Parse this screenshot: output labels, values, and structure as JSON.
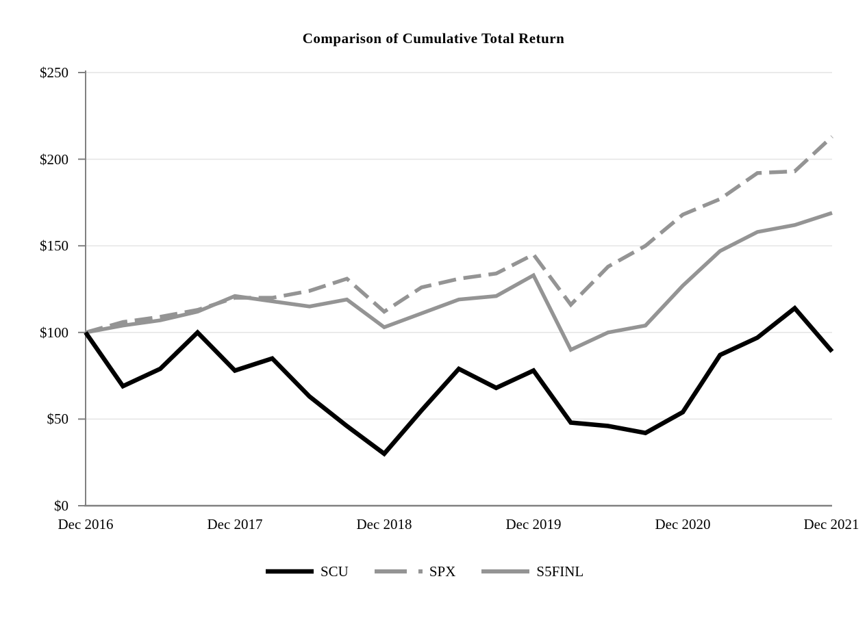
{
  "chart_data": {
    "type": "line",
    "title": "Comparison of Cumulative Total Return",
    "x_tick_labels": [
      "Dec 2016",
      "Dec 2017",
      "Dec 2018",
      "Dec 2019",
      "Dec 2020",
      "Dec 2021"
    ],
    "y_tick_labels": [
      "$250",
      "$200",
      "$150",
      "$100",
      "$50",
      "$0"
    ],
    "ylim": [
      0,
      250
    ],
    "y_tick_step": 50,
    "grid": true,
    "legend_position": "bottom",
    "x": [
      "Dec 2016",
      "Mar 2017",
      "Jun 2017",
      "Sep 2017",
      "Dec 2017",
      "Mar 2018",
      "Jun 2018",
      "Sep 2018",
      "Dec 2018",
      "Mar 2019",
      "Jun 2019",
      "Sep 2019",
      "Dec 2019",
      "Mar 2020",
      "Jun 2020",
      "Sep 2020",
      "Dec 2020",
      "Mar 2021",
      "Jun 2021",
      "Sep 2021",
      "Dec 2021"
    ],
    "series": [
      {
        "name": "SCU",
        "style": "solid",
        "color": "#000000",
        "values": [
          100,
          69,
          79,
          100,
          78,
          85,
          63,
          46,
          30,
          55,
          79,
          68,
          78,
          48,
          46,
          42,
          54,
          87,
          97,
          114,
          89
        ]
      },
      {
        "name": "SPX",
        "style": "dashed",
        "color": "#949494",
        "values": [
          100,
          106,
          109,
          113,
          120,
          120,
          124,
          131,
          112,
          126,
          131,
          134,
          145,
          116,
          138,
          150,
          168,
          177,
          192,
          193,
          213
        ]
      },
      {
        "name": "S5FINL",
        "style": "solid",
        "color": "#949494",
        "values": [
          100,
          104,
          107,
          112,
          121,
          118,
          115,
          119,
          103,
          111,
          119,
          121,
          133,
          90,
          100,
          104,
          127,
          147,
          158,
          162,
          169
        ]
      }
    ],
    "colors": {
      "gridline": "#e4e4e4",
      "axis": "#808080"
    }
  }
}
